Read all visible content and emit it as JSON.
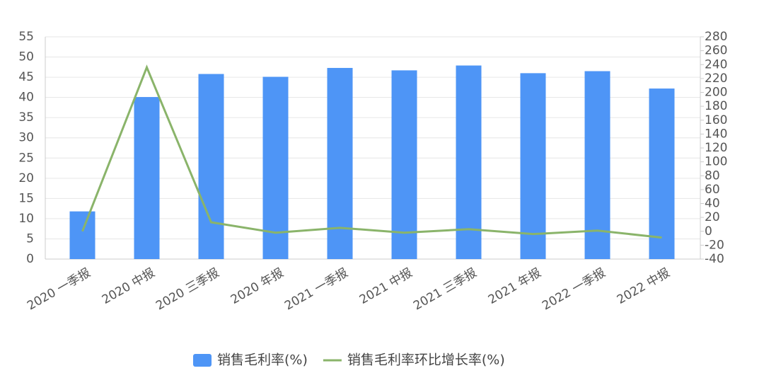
{
  "chart_data": {
    "type": "bar",
    "categories": [
      "2020 一季报",
      "2020 中报",
      "2020 三季报",
      "2020 年报",
      "2021 一季报",
      "2021 中报",
      "2021 三季报",
      "2021 年报",
      "2022 一季报",
      "2022 中报"
    ],
    "series": [
      {
        "name": "销售毛利率(%)",
        "type": "bar",
        "color": "#4e95f6",
        "values": [
          11.8,
          40.1,
          45.8,
          45.1,
          47.3,
          46.7,
          47.9,
          46.0,
          46.5,
          42.2
        ]
      },
      {
        "name": "销售毛利率环比增长率(%)",
        "type": "line",
        "axis": "y2",
        "color": "#8ab46a",
        "values": [
          0,
          236,
          13,
          -2,
          5,
          -2,
          3,
          -4,
          1,
          -9
        ]
      }
    ],
    "ylim": [
      0,
      55
    ],
    "yticks": [
      0,
      5,
      10,
      15,
      20,
      25,
      30,
      35,
      40,
      45,
      50,
      55
    ],
    "y2lim": [
      -40,
      280
    ],
    "y2ticks": [
      -40,
      -20,
      0,
      20,
      40,
      60,
      80,
      100,
      120,
      140,
      160,
      180,
      200,
      220,
      240,
      260,
      280
    ],
    "grid": true
  }
}
